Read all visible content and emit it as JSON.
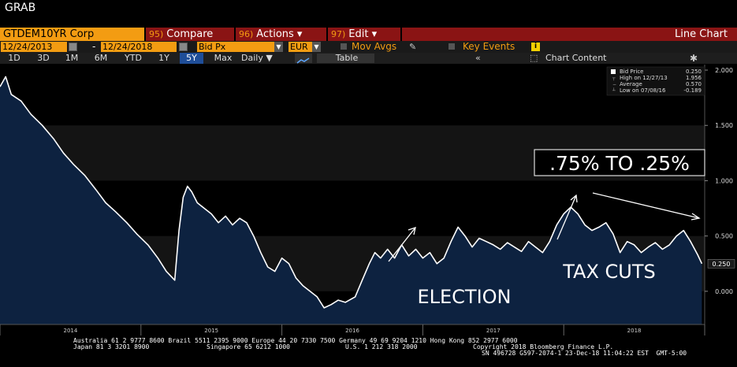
{
  "window": {
    "title": "GRAB"
  },
  "toolbar": {
    "security": "GTDEM10YR Corp",
    "compare_num": "95)",
    "compare_label": "Compare",
    "actions_num": "96)",
    "actions_label": "Actions ▾",
    "edit_num": "97)",
    "edit_label": "Edit ▾",
    "chart_type": "Line Chart"
  },
  "controls": {
    "start_date": "12/24/2013",
    "dash": "-",
    "end_date": "12/24/2018",
    "field": "Bid Px",
    "currency": "EUR",
    "mov_avgs": "Mov Avgs",
    "key_events": "Key Events",
    "info": "i"
  },
  "periods": [
    "1D",
    "3D",
    "1M",
    "6M",
    "YTD",
    "1Y",
    "5Y",
    "Max"
  ],
  "active_period": "5Y",
  "frequency": "Daily ▼",
  "table_label": "Table",
  "chart_content_label": "Chart Content",
  "colors": {
    "orange": "#f39c12",
    "toolbar_red": "#8a1414",
    "active_blue": "#1f4e99",
    "area_fill": "#0d2240",
    "line": "#ffffff"
  },
  "legend": {
    "title": "Bid Price",
    "title_value": "0.250",
    "rows": [
      {
        "label": "High on 12/27/13",
        "value": "1.956"
      },
      {
        "label": "Average",
        "value": "0.570"
      },
      {
        "label": "Low on 07/08/16",
        "value": "-0.189"
      }
    ]
  },
  "annotations": {
    "boxed": ".75% TO .25%",
    "tax_cuts": "TAX CUTS",
    "election": "ELECTION"
  },
  "last_price_tag": "0.250",
  "footer": {
    "line1": "Australia 61 2 9777 8600 Brazil 5511 2395 9000 Europe 44 20 7330 7500 Germany 49 69 9204 1210 Hong Kong 852 2977 6000",
    "line2a": "Japan 81 3 3201 8900",
    "line2b": "Singapore 65 6212 1000",
    "line2c": "U.S. 1 212 318 2000",
    "line2d": "Copyright 2018 Bloomberg Finance L.P.",
    "line3": "SN 496728 G597-2074-1 23-Dec-18 11:04:22 EST  GMT-5:00"
  },
  "chart_data": {
    "type": "area",
    "y_axis_side": "right",
    "ylim": [
      -0.3,
      2.05
    ],
    "yticks": [
      "2.000",
      "1.500",
      "1.000",
      "0.500",
      "0.000"
    ],
    "ytick_values": [
      2.0,
      1.5,
      1.0,
      0.5,
      0.0
    ],
    "xlim": [
      2014.0,
      2019.0
    ],
    "xticks": [
      "2014",
      "2015",
      "2016",
      "2017",
      "2018"
    ],
    "xtick_values": [
      2014.5,
      2015.5,
      2016.5,
      2017.5,
      2018.5
    ],
    "series": [
      {
        "x": [
          2014.0,
          2014.04,
          2014.08,
          2014.15,
          2014.22,
          2014.3,
          2014.38,
          2014.45,
          2014.52,
          2014.6,
          2014.68,
          2014.75,
          2014.82,
          2014.9,
          2014.97,
          2015.05,
          2015.12,
          2015.18,
          2015.24,
          2015.27,
          2015.3,
          2015.33,
          2015.36,
          2015.4,
          2015.45,
          2015.5,
          2015.55,
          2015.6,
          2015.65,
          2015.7,
          2015.75,
          2015.8,
          2015.85,
          2015.9,
          2015.95,
          2016.0,
          2016.05,
          2016.1,
          2016.15,
          2016.2,
          2016.25,
          2016.3,
          2016.35,
          2016.4,
          2016.45,
          2016.52,
          2016.57,
          2016.62,
          2016.66,
          2016.7,
          2016.75,
          2016.8,
          2016.85,
          2016.9,
          2016.95,
          2017.0,
          2017.05,
          2017.1,
          2017.15,
          2017.2,
          2017.25,
          2017.3,
          2017.35,
          2017.4,
          2017.45,
          2017.5,
          2017.55,
          2017.6,
          2017.65,
          2017.7,
          2017.75,
          2017.8,
          2017.85,
          2017.9,
          2017.95,
          2018.0,
          2018.05,
          2018.1,
          2018.15,
          2018.2,
          2018.25,
          2018.3,
          2018.35,
          2018.4,
          2018.45,
          2018.5,
          2018.55,
          2018.6,
          2018.65,
          2018.7,
          2018.75,
          2018.8,
          2018.85,
          2018.9,
          2018.95,
          2018.98
        ],
        "y": [
          1.85,
          1.94,
          1.78,
          1.72,
          1.6,
          1.5,
          1.38,
          1.25,
          1.15,
          1.05,
          0.92,
          0.8,
          0.72,
          0.62,
          0.52,
          0.42,
          0.3,
          0.18,
          0.1,
          0.55,
          0.85,
          0.95,
          0.9,
          0.8,
          0.75,
          0.7,
          0.62,
          0.68,
          0.6,
          0.66,
          0.62,
          0.5,
          0.35,
          0.22,
          0.18,
          0.3,
          0.25,
          0.12,
          0.05,
          0.0,
          -0.05,
          -0.15,
          -0.12,
          -0.08,
          -0.1,
          -0.05,
          0.1,
          0.25,
          0.35,
          0.3,
          0.38,
          0.3,
          0.42,
          0.32,
          0.38,
          0.3,
          0.35,
          0.25,
          0.3,
          0.45,
          0.58,
          0.5,
          0.4,
          0.48,
          0.45,
          0.42,
          0.38,
          0.44,
          0.4,
          0.36,
          0.45,
          0.4,
          0.35,
          0.45,
          0.6,
          0.7,
          0.76,
          0.7,
          0.6,
          0.55,
          0.58,
          0.62,
          0.52,
          0.35,
          0.45,
          0.42,
          0.35,
          0.4,
          0.44,
          0.38,
          0.42,
          0.5,
          0.55,
          0.45,
          0.33,
          0.25
        ]
      }
    ]
  }
}
